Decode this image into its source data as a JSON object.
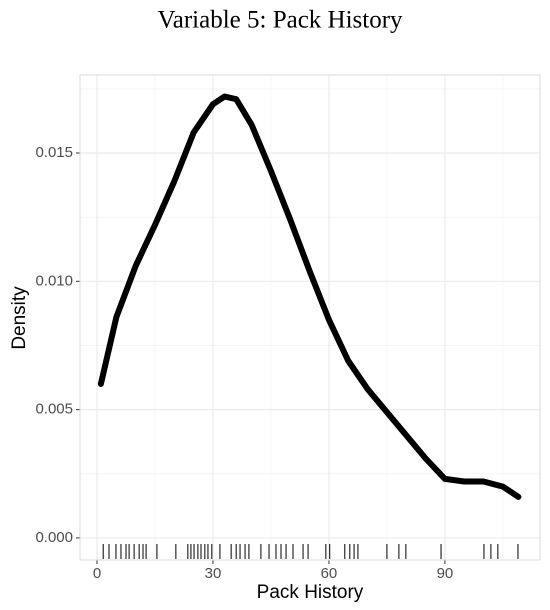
{
  "chart_data": {
    "type": "density",
    "title": "Variable 5: Pack History",
    "x_label": "Pack History",
    "y_label": "Density",
    "x": [
      1,
      5,
      10,
      15,
      20,
      25,
      30,
      33,
      36,
      40,
      45,
      50,
      55,
      60,
      65,
      70,
      75,
      80,
      85,
      90,
      95,
      100,
      105,
      109
    ],
    "values": [
      0.006,
      0.0086,
      0.0106,
      0.0122,
      0.0139,
      0.0158,
      0.0169,
      0.0172,
      0.0171,
      0.0161,
      0.0143,
      0.0124,
      0.0104,
      0.0085,
      0.0069,
      0.0058,
      0.0049,
      0.004,
      0.0031,
      0.0023,
      0.0022,
      0.0022,
      0.002,
      0.0016
    ],
    "rug": [
      1.6,
      3.1,
      4.9,
      6.2,
      7.5,
      8.3,
      9.6,
      10.9,
      11.9,
      12.7,
      15.5,
      20.4,
      23.5,
      24.3,
      25.1,
      26.1,
      26.9,
      27.9,
      28.7,
      29.7,
      31.8,
      34.7,
      36.0,
      37.0,
      38.3,
      39.3,
      42.4,
      44.5,
      46.3,
      47.6,
      48.9,
      50.7,
      53.3,
      54.6,
      59.2,
      60.2,
      64.1,
      65.4,
      66.5,
      67.5,
      75.0,
      78.1,
      79.9,
      89.0,
      100.1,
      101.9,
      103.7,
      108.9
    ],
    "color": "#000000",
    "xlim": [
      -4.4,
      114.6
    ],
    "ylim": [
      -0.00086,
      0.01804
    ],
    "xticks": [
      0,
      30,
      60,
      90
    ],
    "yticks": [
      {
        "value": 0,
        "label": "0.000"
      },
      {
        "value": 0.005,
        "label": "0.005"
      },
      {
        "value": 0.01,
        "label": "0.010"
      },
      {
        "value": 0.015,
        "label": "0.015"
      }
    ],
    "xminor": [
      15,
      45,
      75,
      105
    ],
    "yminor": [
      0.0025,
      0.0075,
      0.0125,
      0.0175
    ],
    "grid": true
  }
}
